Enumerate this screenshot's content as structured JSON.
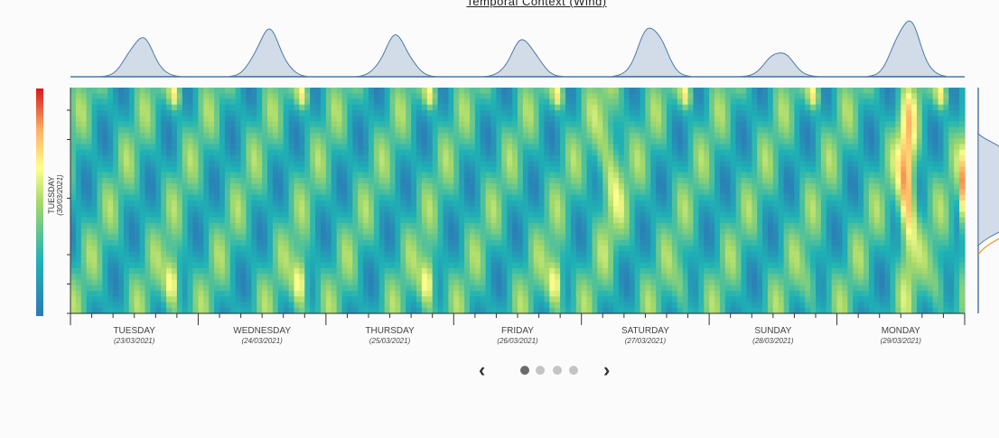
{
  "title": "Temporal Context (Wind)",
  "carousel": {
    "prev_label": "‹",
    "next_label": "›",
    "pages": 4,
    "active_page": 1
  },
  "colors": {
    "low": "#2c7bb6",
    "mid_low": "#1fb3b5",
    "mid": "#a6d96a",
    "mid_high": "#ffff8c",
    "high_mid": "#fdae61",
    "high": "#d7191c",
    "axis": "#333333",
    "density_fill": "#d1dce8",
    "density_stroke": "#4e79a7",
    "side_curve_2": "#f28e2b"
  },
  "chart_data": {
    "type": "heatmap",
    "title": "Temporal Context (Wind)",
    "y_axis_label": "TUESDAY",
    "y_axis_sublabel": "(30/03/2021)",
    "colorscale": "Spectral (reversed)",
    "days": [
      {
        "name": "TUESDAY",
        "date": "(23/03/2021)",
        "peak_hour": 15,
        "peak_value": 0.55,
        "day_density_height": 0.69
      },
      {
        "name": "WEDNESDAY",
        "date": "(24/03/2021)",
        "peak_hour": 14,
        "peak_value": 0.82,
        "day_density_height": 0.81
      },
      {
        "name": "THURSDAY",
        "date": "(25/03/2021)",
        "peak_hour": 14,
        "peak_value": 0.82,
        "day_density_height": 0.71
      },
      {
        "name": "FRIDAY",
        "date": "(26/03/2021)",
        "peak_hour": 14,
        "peak_value": 0.85,
        "day_density_height": 0.65
      },
      {
        "name": "SATURDAY",
        "date": "(27/03/2021)",
        "peak_hour": 6,
        "peak_value": 0.55,
        "day_density_height": 0.9
      },
      {
        "name": "SUNDAY",
        "date": "(28/03/2021)",
        "peak_hour": 12,
        "peak_value": 0.4,
        "day_density_height": 0.45
      },
      {
        "name": "MONDAY",
        "date": "(29/03/2021)",
        "peak_hour": 11,
        "peak_value": 0.92,
        "day_density_height": 1.0
      }
    ],
    "cells_per_day": 24,
    "rows": 40
  }
}
